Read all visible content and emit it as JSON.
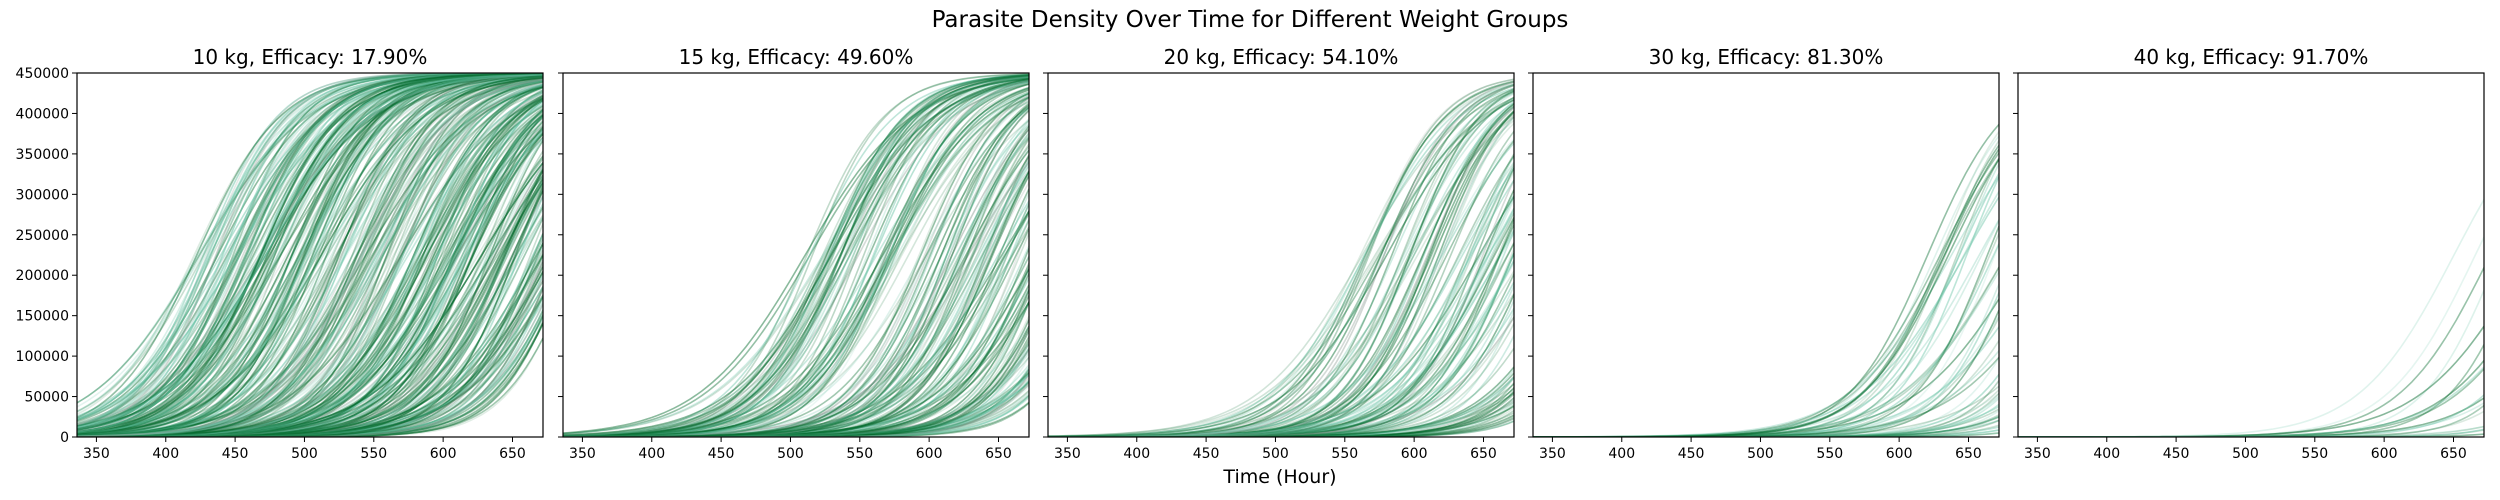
{
  "figure": {
    "title": "Parasite Density Over Time for Different Weight Groups",
    "xlabel": "Time (Hour)"
  },
  "chart_data": {
    "type": "line",
    "xlim": [
      336,
      672
    ],
    "ylim": [
      0,
      450000
    ],
    "x_ticks": [
      350,
      400,
      450,
      500,
      550,
      600,
      650
    ],
    "y_ticks": [
      0,
      50000,
      100000,
      150000,
      200000,
      250000,
      300000,
      350000,
      400000,
      450000
    ],
    "y_tick_labels": [
      "0",
      "50000",
      "100000",
      "150000",
      "200000",
      "250000",
      "300000",
      "350000",
      "400000",
      "450000"
    ],
    "x_tick_labels": [
      "350",
      "400",
      "450",
      "500",
      "550",
      "600",
      "650"
    ],
    "grid": false,
    "line_color": "#00692a",
    "line_color_light": "#66c2a4",
    "line_color_gray": "#8a9a92",
    "curve_model": "logistic",
    "carrying_capacity": 450000,
    "panels": [
      {
        "title": "10 kg, Efficacy: 17.90%",
        "weight": "10 kg",
        "efficacy": 17.9,
        "midpoint_range": [
          420,
          700
        ],
        "steepness_range": [
          0.025,
          0.04
        ],
        "density": "very high"
      },
      {
        "title": "15 kg, Efficacy: 49.60%",
        "weight": "15 kg",
        "efficacy": 49.6,
        "midpoint_range": [
          510,
          740
        ],
        "steepness_range": [
          0.025,
          0.04
        ],
        "density": "high"
      },
      {
        "title": "20 kg, Efficacy: 54.10%",
        "weight": "20 kg",
        "efficacy": 54.1,
        "midpoint_range": [
          560,
          760
        ],
        "steepness_range": [
          0.025,
          0.04
        ],
        "density": "medium"
      },
      {
        "title": "30 kg, Efficacy: 81.30%",
        "weight": "30 kg",
        "efficacy": 81.3,
        "midpoint_range": [
          620,
          800
        ],
        "steepness_range": [
          0.025,
          0.04
        ],
        "density": "low"
      },
      {
        "title": "40 kg, Efficacy: 91.70%",
        "weight": "40 kg",
        "efficacy": 91.7,
        "midpoint_range": [
          650,
          820
        ],
        "steepness_range": [
          0.025,
          0.04
        ],
        "density": "very low"
      }
    ]
  }
}
